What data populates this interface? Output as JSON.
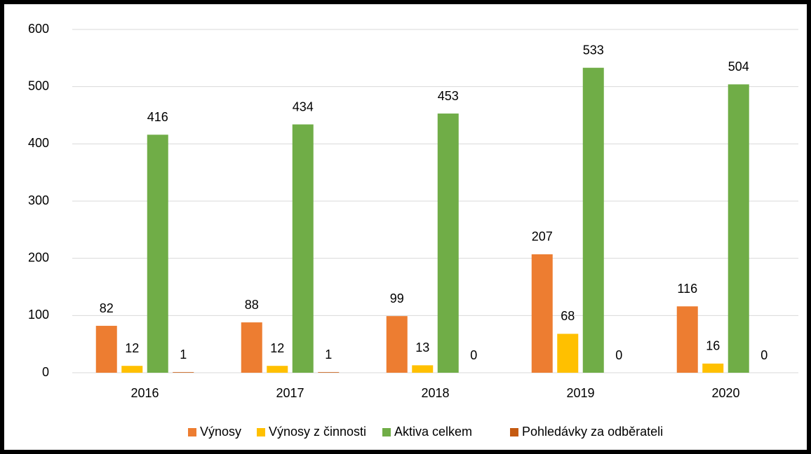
{
  "chart_data": {
    "type": "bar",
    "categories": [
      "2016",
      "2017",
      "2018",
      "2019",
      "2020"
    ],
    "series": [
      {
        "name": "Výnosy",
        "color": "#ED7D31",
        "values": [
          82,
          88,
          99,
          207,
          116
        ]
      },
      {
        "name": "Výnosy z činnosti",
        "color": "#FFC000",
        "values": [
          12,
          12,
          13,
          68,
          16
        ]
      },
      {
        "name": "Aktiva celkem",
        "color": "#70AD47",
        "values": [
          416,
          434,
          453,
          533,
          504
        ]
      },
      {
        "name": "Pohledávky za odběrateli",
        "color": "#C55A11",
        "values": [
          1,
          1,
          0,
          0,
          0
        ]
      }
    ],
    "ylim": [
      0,
      600
    ],
    "yticks": [
      0,
      100,
      200,
      300,
      400,
      500,
      600
    ],
    "grid": true,
    "legend": "bottom"
  }
}
